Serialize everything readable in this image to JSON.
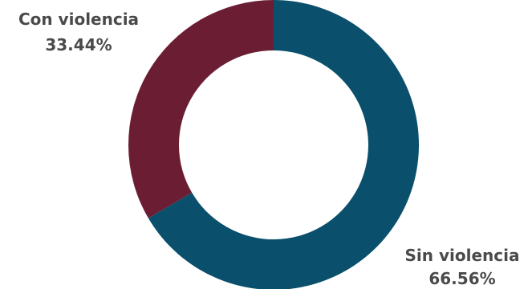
{
  "chart_data": {
    "type": "pie",
    "donut": true,
    "start_angle_deg": 0,
    "direction": "clockwise",
    "slices": [
      {
        "label": "Sin violencia",
        "value": 66.56,
        "value_label": "66.56%",
        "color": "#0a4f6b"
      },
      {
        "label": "Con violencia",
        "value": 33.44,
        "value_label": "33.44%",
        "color": "#6b1e33"
      }
    ],
    "legend": "none"
  }
}
